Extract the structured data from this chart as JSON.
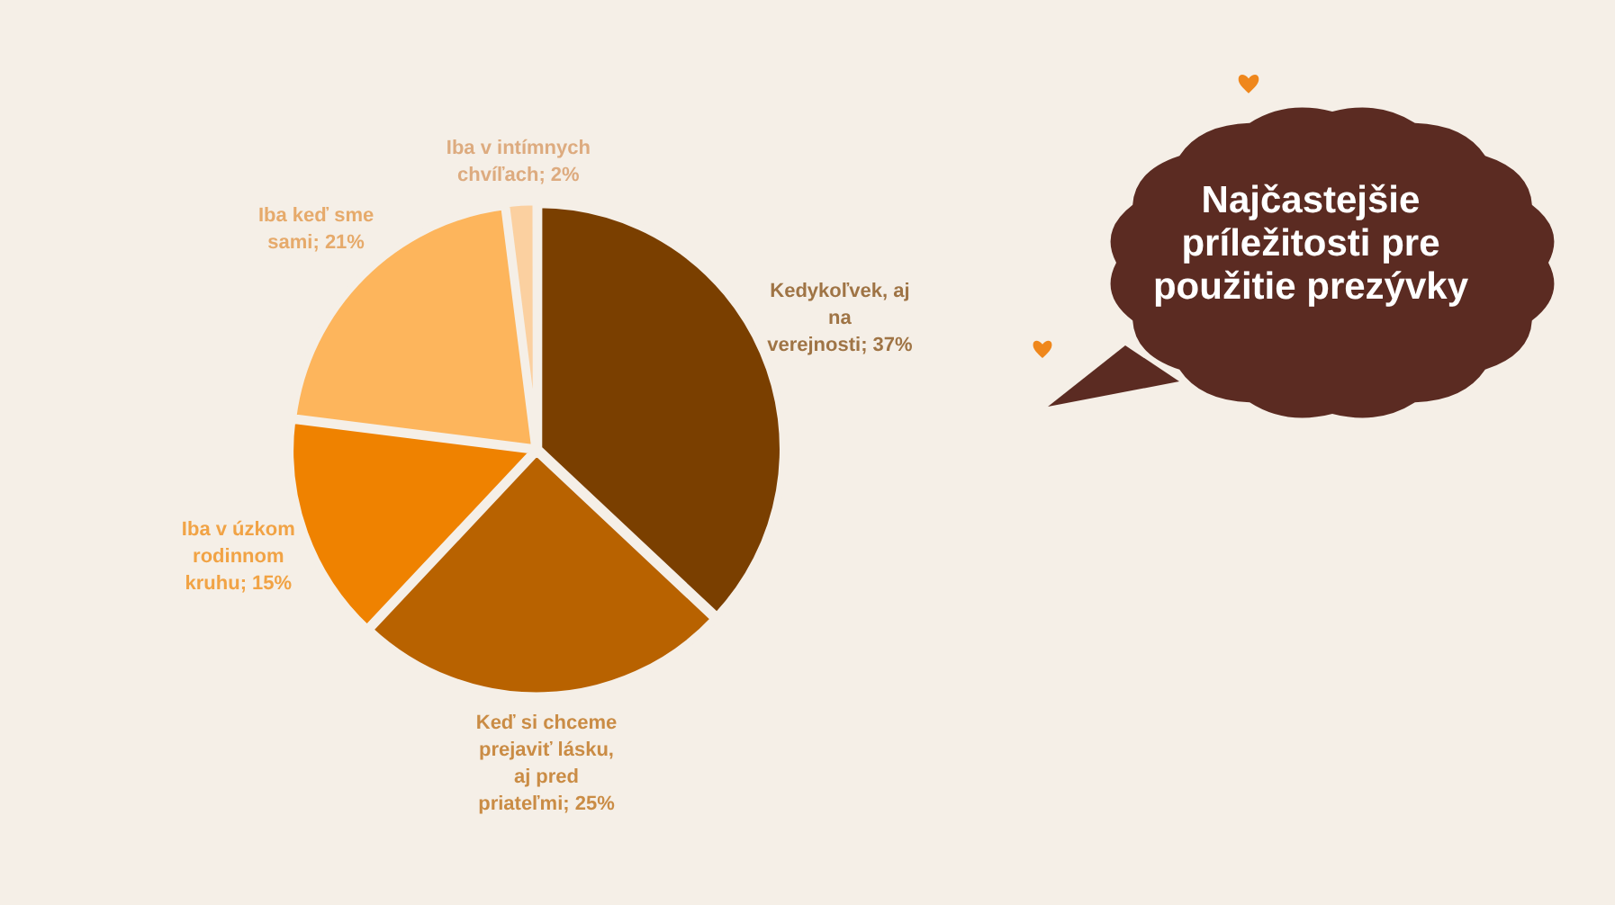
{
  "chart_data": {
    "type": "pie",
    "title": "Najčastejšie príležitosti pre použitie prezývky",
    "categories": [
      "Kedykoľvek, aj na verejnosti",
      "Keď si chceme prejaviť lásku, aj pred priateľmi",
      "Iba v úzkom rodinnom kruhu",
      "Iba keď sme sami",
      "Iba v intímnych chvíľach"
    ],
    "values": [
      37,
      25,
      15,
      21,
      2
    ],
    "value_labels": [
      "37%",
      "25%",
      "15%",
      "21%",
      "2%"
    ],
    "colors": [
      "#7a3f00",
      "#b86200",
      "#ef8200",
      "#fdb55c",
      "#fbd0a0"
    ]
  }
}
